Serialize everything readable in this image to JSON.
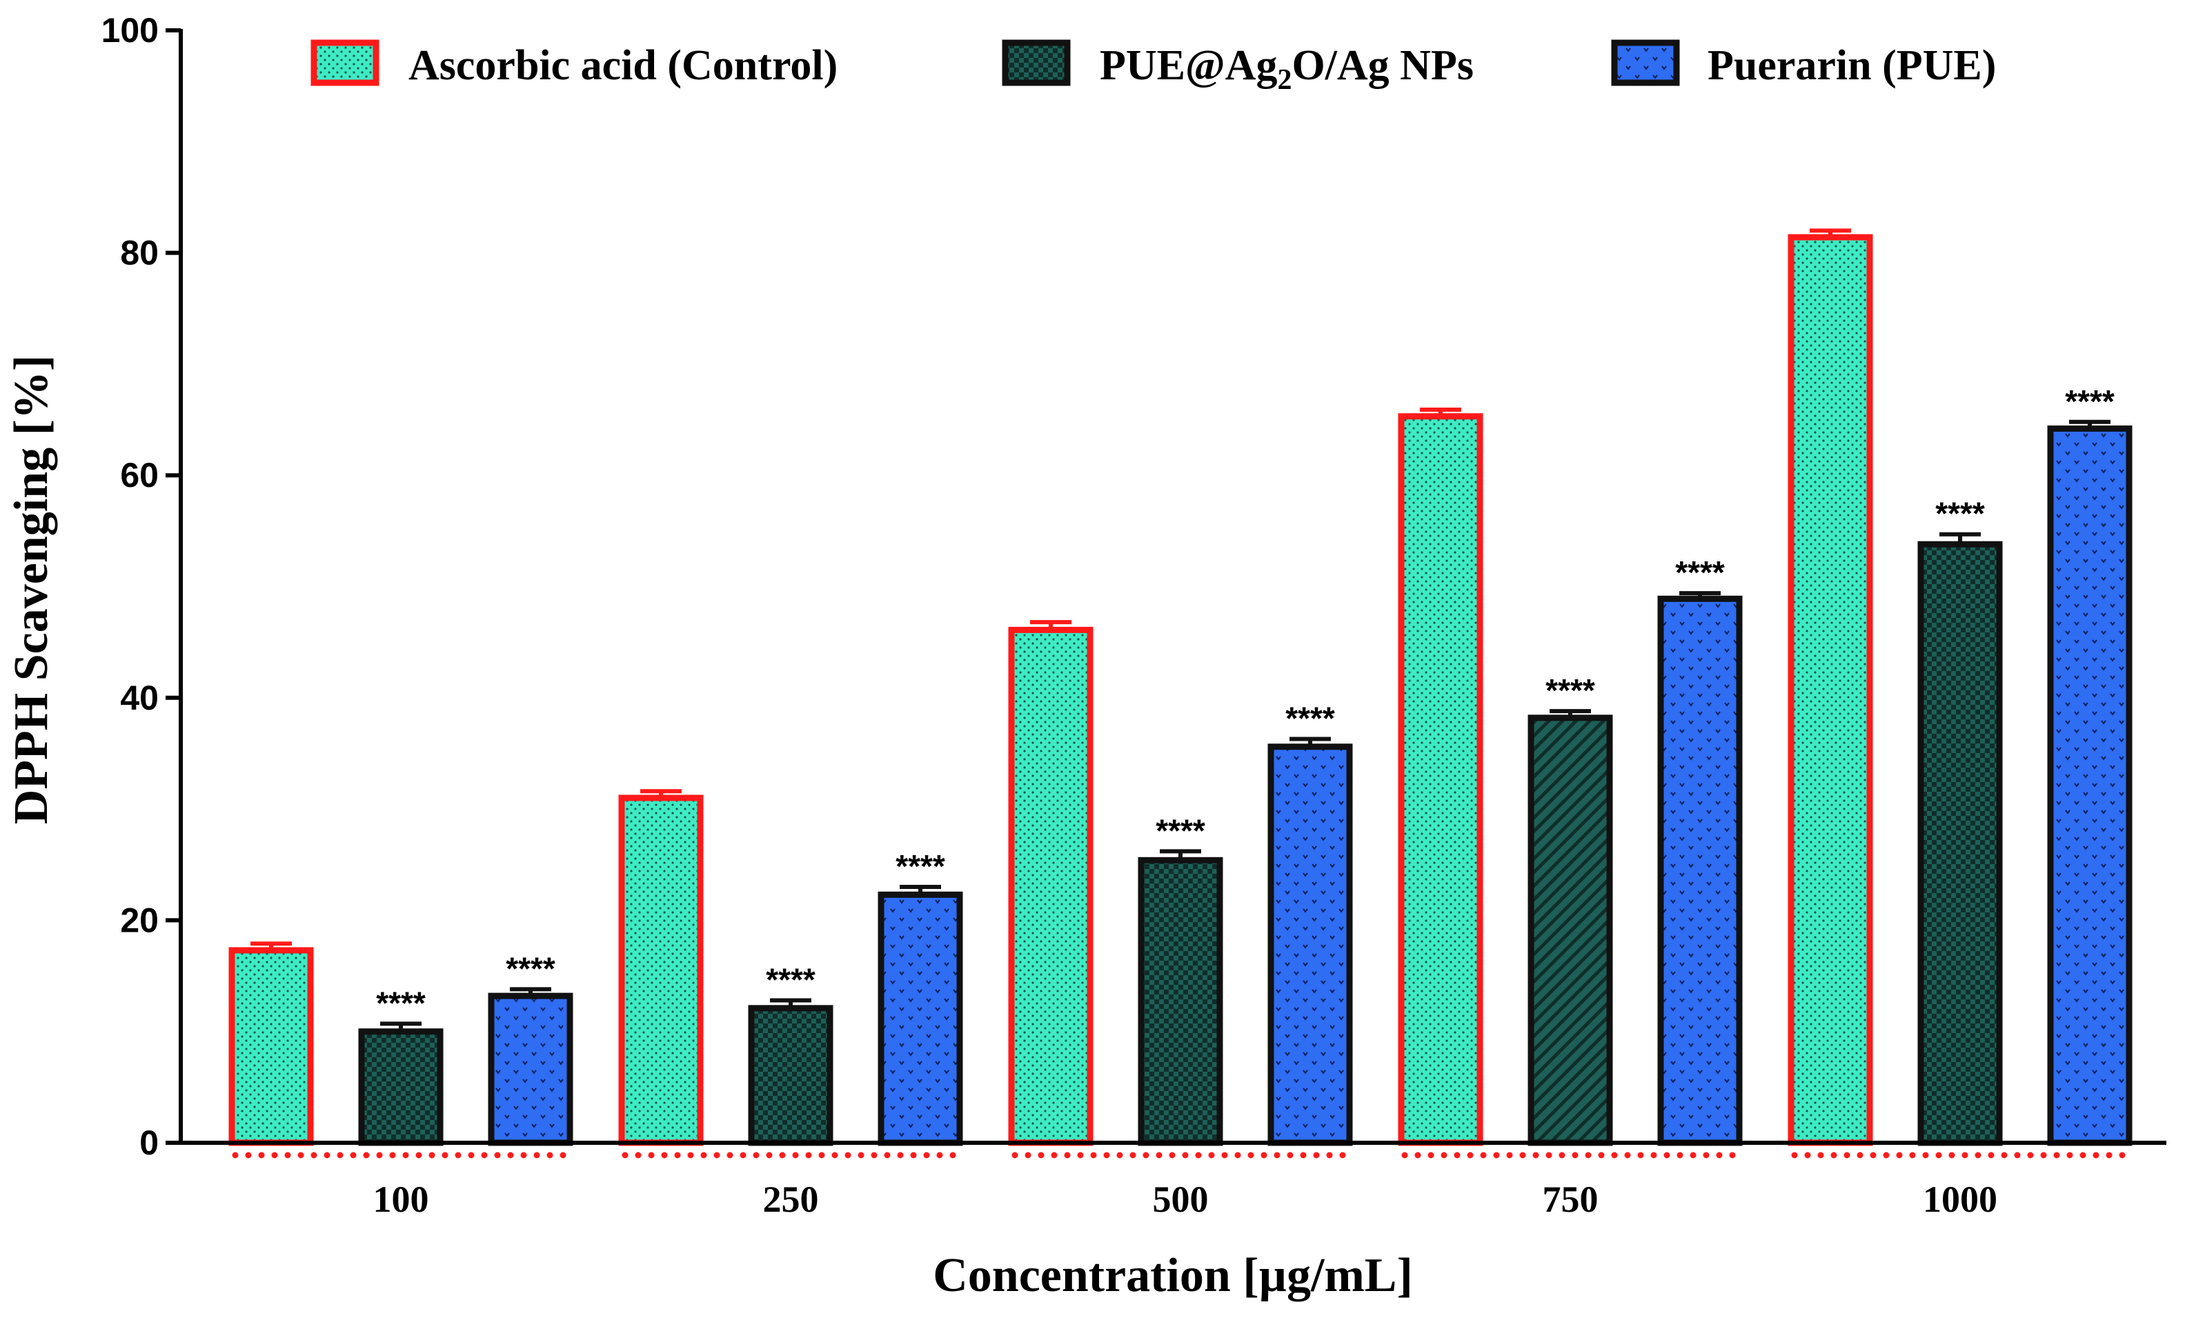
{
  "colors": {
    "control_fill": "#3EEBC4",
    "control_border": "#FF1A1A",
    "nps_fill": "#1E5F57",
    "nps_border": "#111111",
    "pue_fill": "#2F6DF2",
    "pue_border": "#111111",
    "group_dots": "#FF1A1A"
  },
  "chart_data": {
    "type": "bar",
    "title": "",
    "xlabel": "Concentration [µg/mL]",
    "ylabel": "DPPH Scavenging [%]",
    "ylim": [
      0,
      100
    ],
    "yticks": [
      "0",
      "20",
      "40",
      "60",
      "80",
      "100"
    ],
    "categories": [
      "100",
      "250",
      "500",
      "750",
      "1000"
    ],
    "legend_position": "top",
    "series": [
      {
        "name": "Ascorbic acid (Control)",
        "values": [
          17.3,
          31.0,
          46.1,
          65.3,
          81.4
        ],
        "errors": [
          0.6,
          0.6,
          0.7,
          0.6,
          0.6
        ],
        "significance": [
          "",
          "",
          "",
          "",
          ""
        ]
      },
      {
        "name": "PUE@Ag2O/Ag NPs",
        "name_parts": [
          "PUE@Ag",
          "2",
          "O/Ag NPs"
        ],
        "values": [
          10.0,
          12.1,
          25.4,
          38.2,
          53.8
        ],
        "errors": [
          0.7,
          0.7,
          0.8,
          0.6,
          0.9
        ],
        "significance": [
          "****",
          "****",
          "****",
          "****",
          "****"
        ]
      },
      {
        "name": "Puerarin (PUE)",
        "values": [
          13.2,
          22.3,
          35.6,
          48.9,
          64.2
        ],
        "errors": [
          0.6,
          0.7,
          0.7,
          0.5,
          0.6
        ],
        "significance": [
          "****",
          "****",
          "****",
          "****",
          "****"
        ]
      }
    ]
  }
}
